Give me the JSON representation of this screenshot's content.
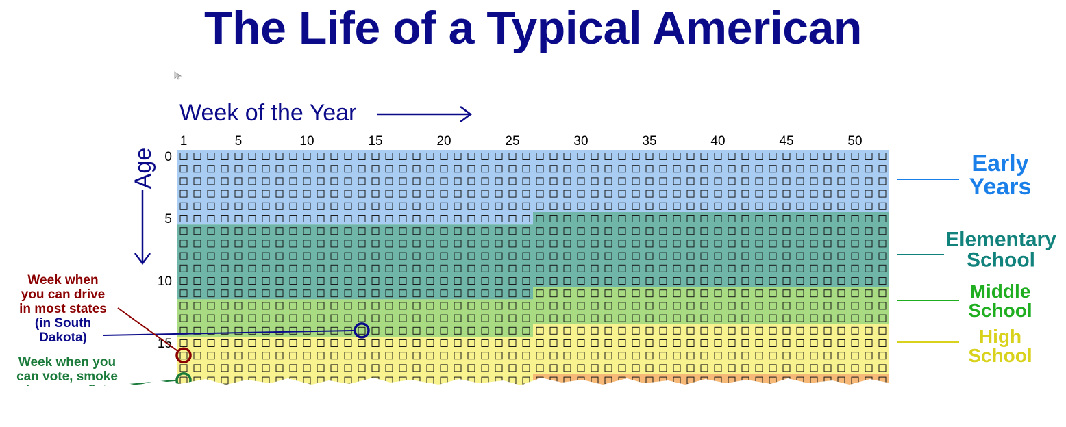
{
  "title": "The Life of a Typical American",
  "chart_data": {
    "type": "heatmap",
    "xlabel": "Week of the Year",
    "ylabel": "Age",
    "x_ticks": [
      1,
      5,
      10,
      15,
      20,
      25,
      30,
      35,
      40,
      45,
      50
    ],
    "y_ticks": [
      0,
      5,
      10,
      15
    ],
    "weeks_per_row": 52,
    "rows_shown": 20,
    "phases": [
      {
        "name": "Early Years",
        "label_lines": [
          "Early",
          "Years"
        ],
        "color": "#a9ccf3",
        "label_color": "#1a7fe8",
        "start_age": 0,
        "start_week": 1,
        "end_age": 5,
        "end_week": 26
      },
      {
        "name": "Elementary School",
        "label_lines": [
          "Elementary",
          "School"
        ],
        "color": "#6fb6a9",
        "label_color": "#12827c",
        "start_age": 5,
        "start_week": 27,
        "end_age": 11,
        "end_week": 26
      },
      {
        "name": "Middle School",
        "label_lines": [
          "Middle",
          "School"
        ],
        "color": "#a8db82",
        "label_color": "#1fae1f",
        "start_age": 11,
        "start_week": 27,
        "end_age": 14,
        "end_week": 26
      },
      {
        "name": "High School",
        "label_lines": [
          "High",
          "School"
        ],
        "color": "#f8f28f",
        "label_color": "#d9d21c",
        "start_age": 14,
        "start_week": 27,
        "end_age": 18,
        "end_week": 26
      },
      {
        "name": "",
        "label_lines": [],
        "color": "#f6b978",
        "label_color": "#f08a1e",
        "start_age": 18,
        "start_week": 27,
        "end_age": 19,
        "end_week": 52
      }
    ],
    "markers": [
      {
        "name": "drive_south_dakota",
        "age": 14,
        "week": 14,
        "color": "#0b0b8a"
      },
      {
        "name": "drive_most_states",
        "age": 16,
        "week": 1,
        "color": "#8b0000"
      },
      {
        "name": "vote",
        "age": 18,
        "week": 1,
        "color": "#1a7a3a"
      }
    ],
    "annotations": {
      "drive_most_states": [
        "Week when",
        "you can drive",
        "in most states"
      ],
      "drive_south_dakota": [
        "(in South",
        "Dakota)"
      ],
      "vote": [
        "Week when you",
        "can vote, smoke",
        "cigarettes, fight"
      ]
    },
    "colors": {
      "title": "#0b0b8a",
      "axis": "#0b0b8a",
      "drive_most_states": "#8b0000",
      "drive_south_dakota": "#0b0b8a",
      "vote": "#1a7a3a"
    }
  }
}
